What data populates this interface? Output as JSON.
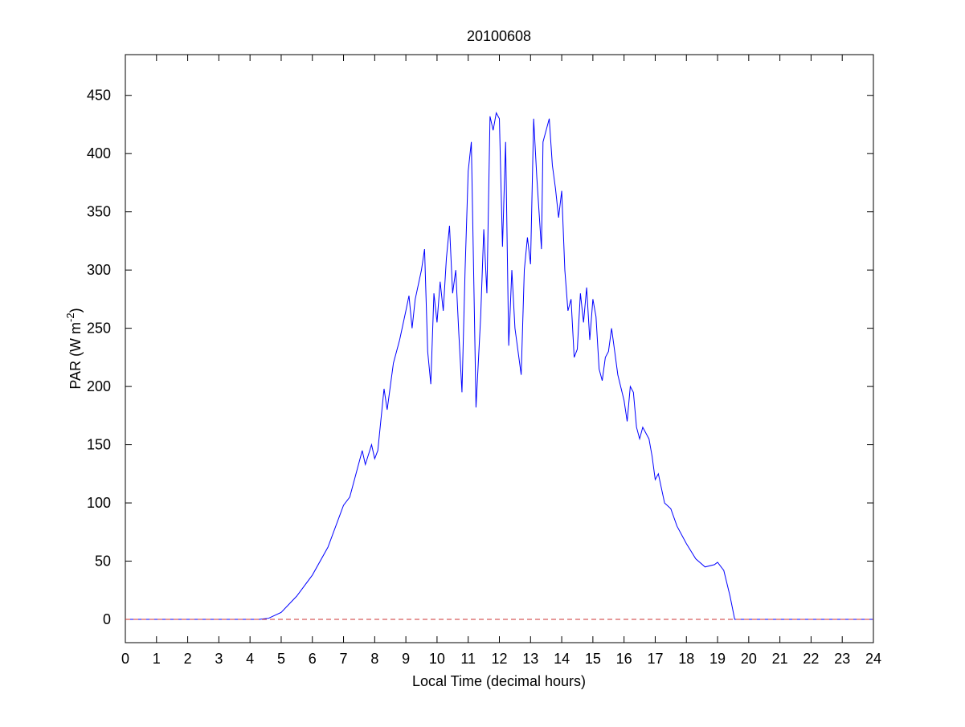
{
  "chart_data": {
    "type": "line",
    "title": "20100608",
    "xlabel": "Local Time (decimal hours)",
    "ylabel_parts": [
      "PAR (W m",
      "-2",
      ")"
    ],
    "xlim": [
      0,
      24
    ],
    "xticks": [
      0,
      1,
      2,
      3,
      4,
      5,
      6,
      7,
      8,
      9,
      10,
      11,
      12,
      13,
      14,
      15,
      16,
      17,
      18,
      19,
      20,
      21,
      22,
      23,
      24
    ],
    "ylim": [
      -20,
      485
    ],
    "yticks": [
      0,
      50,
      100,
      150,
      200,
      250,
      300,
      350,
      400,
      450
    ],
    "reference_line": {
      "value": 0,
      "color": "#cc3333",
      "style": "dashed"
    },
    "series": [
      {
        "color": "#0000ff",
        "x": [
          0,
          4.3,
          4.6,
          5.0,
          5.5,
          6.0,
          6.5,
          7.0,
          7.2,
          7.5,
          7.6,
          7.7,
          7.9,
          8.0,
          8.1,
          8.3,
          8.4,
          8.6,
          8.8,
          9.0,
          9.1,
          9.2,
          9.3,
          9.5,
          9.6,
          9.7,
          9.8,
          9.9,
          10.0,
          10.1,
          10.2,
          10.3,
          10.4,
          10.5,
          10.6,
          10.7,
          10.8,
          10.9,
          11.0,
          11.1,
          11.2,
          11.25,
          11.4,
          11.5,
          11.6,
          11.7,
          11.8,
          11.9,
          12.0,
          12.1,
          12.2,
          12.3,
          12.4,
          12.5,
          12.7,
          12.8,
          12.9,
          13.0,
          13.1,
          13.2,
          13.35,
          13.4,
          13.5,
          13.6,
          13.7,
          13.8,
          13.9,
          14.0,
          14.1,
          14.2,
          14.3,
          14.4,
          14.5,
          14.6,
          14.7,
          14.8,
          14.9,
          15.0,
          15.1,
          15.2,
          15.3,
          15.4,
          15.5,
          15.6,
          15.7,
          15.8,
          16.0,
          16.1,
          16.2,
          16.3,
          16.4,
          16.5,
          16.6,
          16.7,
          16.8,
          16.9,
          17.0,
          17.1,
          17.3,
          17.5,
          17.7,
          18.0,
          18.3,
          18.6,
          18.9,
          19.0,
          19.2,
          19.4,
          19.55,
          24
        ],
        "values": [
          0,
          0,
          1,
          6,
          20,
          38,
          62,
          98,
          105,
          135,
          145,
          133,
          150,
          138,
          145,
          198,
          180,
          220,
          240,
          265,
          278,
          250,
          275,
          300,
          318,
          230,
          202,
          280,
          255,
          290,
          265,
          310,
          338,
          280,
          300,
          245,
          195,
          300,
          385,
          410,
          260,
          182,
          260,
          335,
          280,
          432,
          420,
          435,
          430,
          320,
          410,
          235,
          300,
          250,
          210,
          300,
          328,
          305,
          430,
          380,
          318,
          410,
          420,
          430,
          390,
          370,
          345,
          368,
          300,
          265,
          275,
          225,
          232,
          280,
          255,
          285,
          240,
          275,
          260,
          215,
          205,
          225,
          230,
          250,
          230,
          210,
          188,
          170,
          200,
          195,
          165,
          155,
          165,
          160,
          155,
          140,
          120,
          125,
          100,
          95,
          80,
          65,
          52,
          45,
          47,
          49,
          42,
          20,
          0,
          0
        ]
      }
    ]
  }
}
